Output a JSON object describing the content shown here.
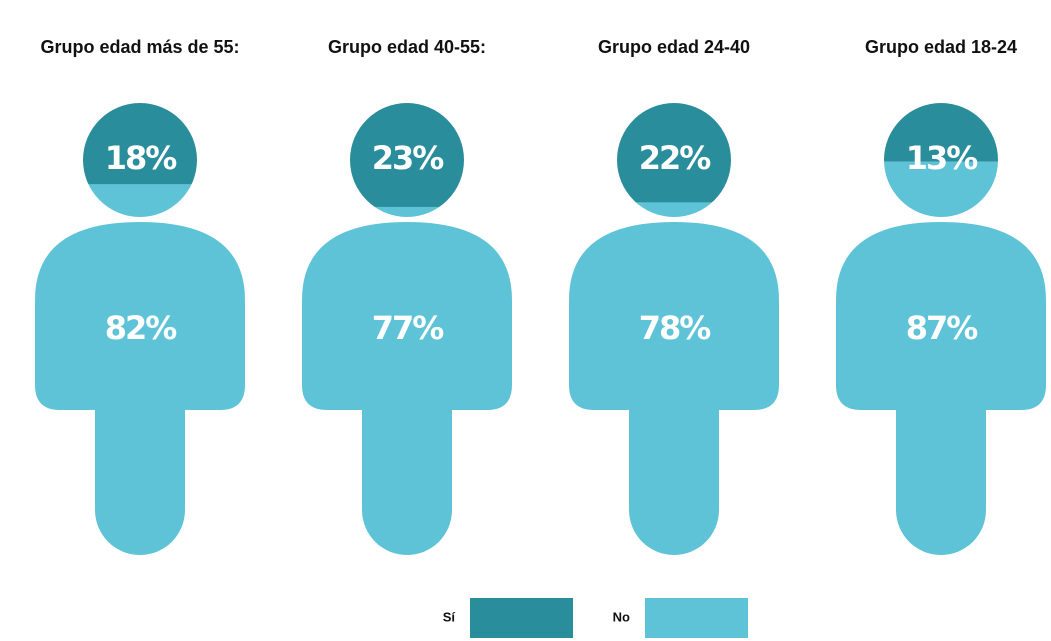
{
  "chart_data": {
    "type": "pictogram",
    "categories": [
      "Grupo edad más de 55:",
      "Grupo edad 40-55:",
      "Grupo edad 24-40",
      "Grupo edad 18-24"
    ],
    "series": [
      {
        "name": "Sí",
        "color": "#2a8d9c",
        "values": [
          18,
          23,
          22,
          13
        ],
        "value_labels": [
          "18%",
          "23%",
          "22%",
          "13%"
        ]
      },
      {
        "name": "No",
        "color": "#5ec3d6",
        "values": [
          82,
          77,
          78,
          87
        ],
        "value_labels": [
          "82%",
          "77%",
          "78%",
          "87%"
        ]
      }
    ]
  }
}
